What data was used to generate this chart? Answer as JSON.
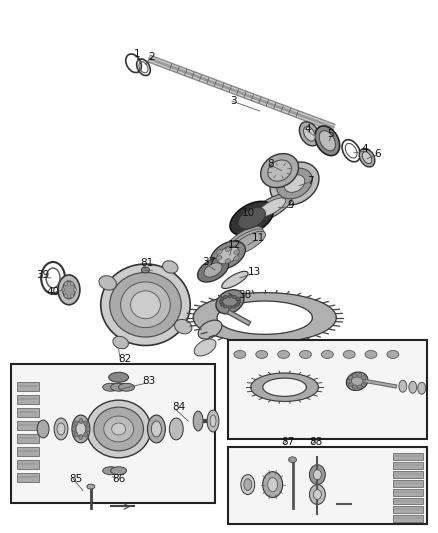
{
  "bg_color": "#ffffff",
  "fig_width": 4.38,
  "fig_height": 5.33
}
